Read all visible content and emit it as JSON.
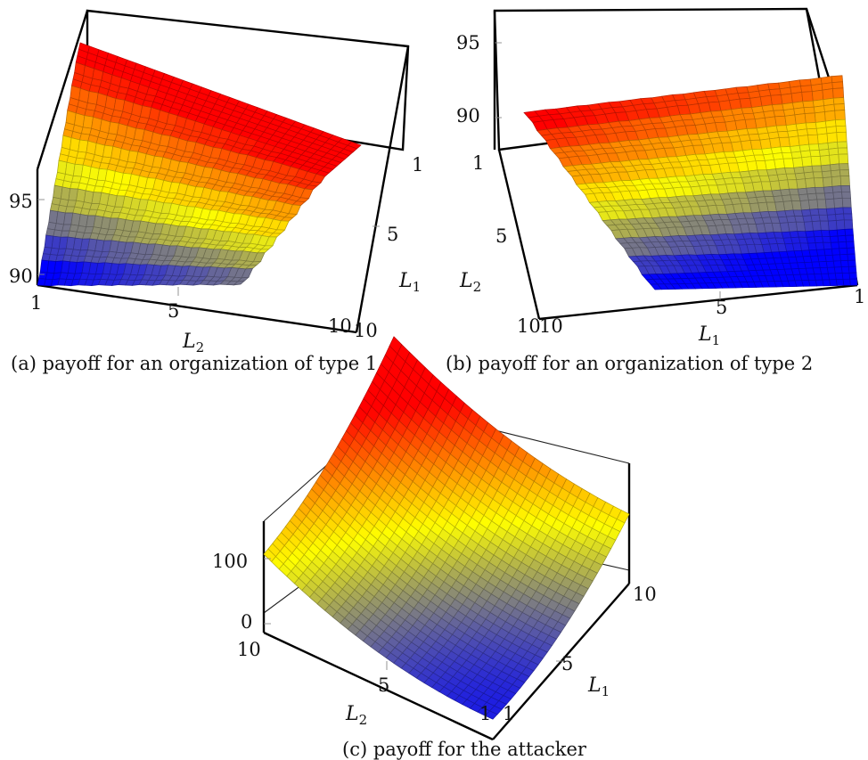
{
  "figure": {
    "panels": [
      {
        "id": "a",
        "caption": "(a) payoff for an organization of type 1"
      },
      {
        "id": "b",
        "caption": "(b) payoff for an organization of type 2"
      },
      {
        "id": "c",
        "caption": "(c) payoff for the attacker"
      }
    ]
  },
  "chart_data": [
    {
      "type": "surface",
      "title": "(a) payoff for an organization of type 1",
      "xlabel": "L_2",
      "ylabel": "L_1",
      "zlabel": "",
      "x_ticks": [
        "1",
        "5",
        "10"
      ],
      "y_ticks": [
        "1",
        "5",
        "10"
      ],
      "z_ticks": [
        "90",
        "95"
      ],
      "xlim": [
        1,
        10
      ],
      "ylim": [
        1,
        10
      ],
      "zlim": [
        90,
        100
      ],
      "colormap": [
        "#0000ff",
        "#ffff00",
        "#ff0000"
      ],
      "surface_description": "stepped plateau rising from ~90 (blue) at L1=10 to ~100 (red) at L1=1, with stair-step edges along L2"
    },
    {
      "type": "surface",
      "title": "(b) payoff for an organization of type 2",
      "xlabel": "L_1",
      "ylabel": "L_2",
      "zlabel": "",
      "x_ticks": [
        "1",
        "5",
        "10"
      ],
      "y_ticks": [
        "1",
        "5",
        "10"
      ],
      "z_ticks": [
        "90",
        "95"
      ],
      "xlim": [
        1,
        10
      ],
      "ylim": [
        1,
        10
      ],
      "zlim": [
        90,
        96
      ],
      "colormap": [
        "#0000ff",
        "#ffff00",
        "#ff0000"
      ],
      "surface_description": "stepped plateau: red ~95 for small L1, stepping down through orange/yellow to blue ~90 at L1=10"
    },
    {
      "type": "surface",
      "title": "(c) payoff for the attacker",
      "xlabel": "L_2",
      "ylabel": "L_1",
      "zlabel": "",
      "x_ticks": [
        "10",
        "5",
        "1"
      ],
      "y_ticks": [
        "1",
        "5",
        "10"
      ],
      "z_ticks": [
        "0",
        "100"
      ],
      "xlim": [
        1,
        10
      ],
      "ylim": [
        1,
        10
      ],
      "zlim": [
        0,
        180
      ],
      "colormap": [
        "#0000ff",
        "#ffff00",
        "#ff0000"
      ],
      "surface_description": "smooth saddle-like surface: minimum (blue) near L1=1, L2=1; maximum (red) near L1=10, L2=10; edges ~100"
    }
  ]
}
